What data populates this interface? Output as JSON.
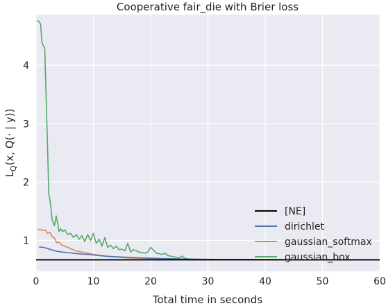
{
  "chart_data": {
    "type": "line",
    "title": "Cooperative fair_die with Brier loss",
    "xlabel": "Total time in seconds",
    "ylabel_main": "L",
    "ylabel_sub": "Q",
    "ylabel_rest": "(x, Q(· | y))",
    "xlim": [
      0,
      60
    ],
    "ylim": [
      0.47,
      4.87
    ],
    "xticks": [
      "0",
      "10",
      "20",
      "30",
      "40",
      "50",
      "60"
    ],
    "yticks": [
      "1",
      "2",
      "3",
      "4"
    ],
    "grid": true,
    "legend_position": "lower-right",
    "reference_line": {
      "name": "[NE]",
      "y": 0.667,
      "color": "#000000"
    },
    "series": [
      {
        "name": "dirichlet",
        "color": "#4c72b0",
        "x": [
          0.5,
          1,
          1.5,
          2,
          2.5,
          3,
          3.5,
          4,
          4.5,
          5,
          6,
          7,
          8,
          9,
          10,
          11,
          12,
          13,
          14,
          15,
          16,
          18,
          20,
          22,
          24,
          26,
          28,
          30,
          35,
          40,
          45,
          50,
          55,
          60
        ],
        "values": [
          0.88,
          0.885,
          0.875,
          0.86,
          0.845,
          0.83,
          0.815,
          0.81,
          0.8,
          0.795,
          0.785,
          0.775,
          0.765,
          0.76,
          0.75,
          0.74,
          0.73,
          0.725,
          0.72,
          0.715,
          0.71,
          0.7,
          0.695,
          0.69,
          0.685,
          0.68,
          0.677,
          0.675,
          0.673,
          0.671,
          0.67,
          0.669,
          0.668,
          0.668
        ]
      },
      {
        "name": "gaussian_softmax",
        "color": "#dd8452",
        "x": [
          0.3,
          0.8,
          1.2,
          1.6,
          2,
          2.4,
          2.8,
          3.2,
          3.6,
          4,
          4.5,
          5,
          5.5,
          6,
          6.5,
          7,
          7.5,
          8,
          8.5,
          9,
          9.5,
          10,
          11,
          12,
          13,
          14,
          15,
          16,
          18,
          20,
          22,
          25,
          28,
          30,
          35,
          40,
          50,
          60
        ],
        "values": [
          1.19,
          1.185,
          1.17,
          1.18,
          1.12,
          1.14,
          1.07,
          1.04,
          0.96,
          0.97,
          0.92,
          0.9,
          0.88,
          0.86,
          0.84,
          0.82,
          0.81,
          0.8,
          0.79,
          0.78,
          0.77,
          0.76,
          0.745,
          0.73,
          0.72,
          0.715,
          0.705,
          0.7,
          0.695,
          0.69,
          0.686,
          0.682,
          0.678,
          0.676,
          0.673,
          0.671,
          0.669,
          0.668
        ]
      },
      {
        "name": "gaussian_box",
        "color": "#55a868",
        "x": [
          0.1,
          0.5,
          0.8,
          1.0,
          1.2,
          1.5,
          2.0,
          2.2,
          2.4,
          2.6,
          2.8,
          3.0,
          3.2,
          3.5,
          3.8,
          4.0,
          4.3,
          4.6,
          5.0,
          5.5,
          6.0,
          6.5,
          7.0,
          7.5,
          8.0,
          8.5,
          9.0,
          9.5,
          10.0,
          10.5,
          11.0,
          11.5,
          12.0,
          12.5,
          13.0,
          13.5,
          14.0,
          14.5,
          15.0,
          15.5,
          16.0,
          16.5,
          17.0,
          18.0,
          19.0,
          19.5,
          20.0,
          21.0,
          22.0,
          22.5,
          23.0,
          24.0,
          25.0,
          25.5,
          26.0,
          27.0,
          28.0,
          30.0,
          35.0,
          40.0,
          50.0,
          60.0
        ],
        "values": [
          4.76,
          4.76,
          4.7,
          4.4,
          4.35,
          4.3,
          2.6,
          1.8,
          1.7,
          1.55,
          1.35,
          1.3,
          1.25,
          1.42,
          1.28,
          1.15,
          1.2,
          1.15,
          1.18,
          1.1,
          1.12,
          1.05,
          1.1,
          1.02,
          1.08,
          0.98,
          1.1,
          1.0,
          1.12,
          0.95,
          1.02,
          0.9,
          1.05,
          0.88,
          0.92,
          0.86,
          0.9,
          0.84,
          0.85,
          0.82,
          0.95,
          0.8,
          0.84,
          0.8,
          0.78,
          0.8,
          0.88,
          0.78,
          0.76,
          0.78,
          0.74,
          0.72,
          0.7,
          0.73,
          0.69,
          0.68,
          0.675,
          0.672,
          0.67,
          0.669,
          0.668,
          0.668
        ]
      }
    ]
  }
}
